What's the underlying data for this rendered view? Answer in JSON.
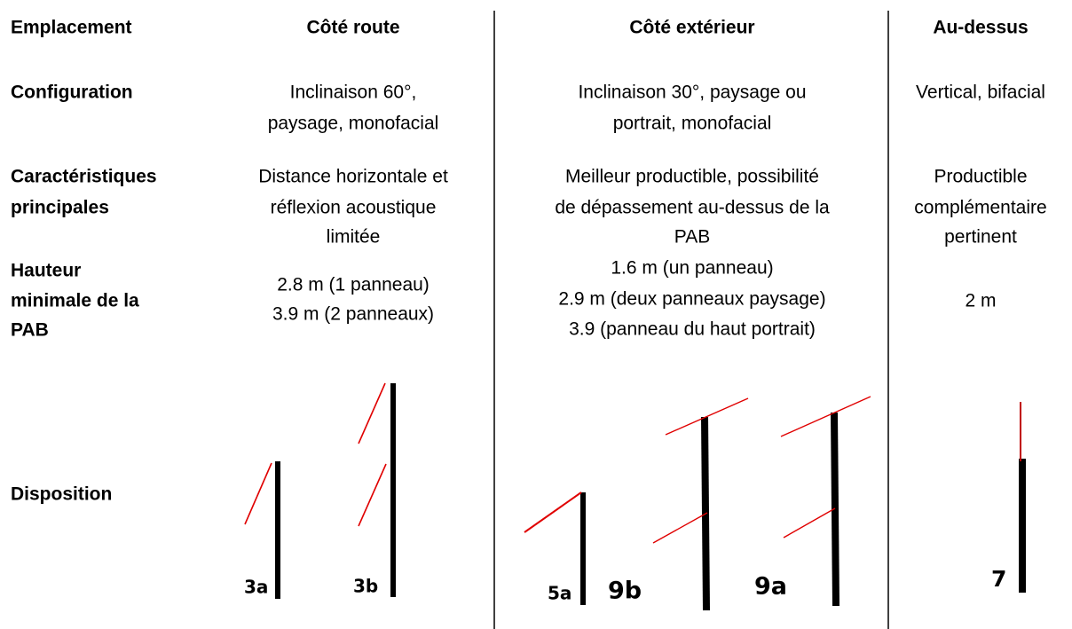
{
  "header": [
    "Emplacement",
    "Côté route",
    "Côté extérieur",
    "Au-dessus"
  ],
  "rows": [
    {
      "label": [
        "Configuration"
      ],
      "cells": [
        [
          "Inclinaison 60°,",
          "paysage, monofacial"
        ],
        [
          "Inclinaison 30°, paysage ou",
          "portrait, monofacial"
        ],
        [
          "Vertical, bifacial"
        ]
      ]
    },
    {
      "label": [
        "Caractéristiques",
        "principales"
      ],
      "cells": [
        [
          "Distance horizontale et",
          "réflexion acoustique",
          "limitée"
        ],
        [
          "Meilleur productible, possibilité",
          "de dépassement au-dessus de la",
          "PAB"
        ],
        [
          "Productible",
          "complémentaire",
          "pertinent"
        ]
      ]
    },
    {
      "label": [
        "Hauteur",
        "minimale de la",
        "PAB"
      ],
      "cells": [
        [
          "2.8 m (1 panneau)",
          "3.9 m (2 panneaux)"
        ],
        [
          "1.6 m (un panneau)",
          "2.9 m (deux panneaux paysage)",
          "3.9 (panneau du haut portrait)"
        ],
        [
          "2 m"
        ]
      ]
    }
  ],
  "disposition": {
    "label": "Disposition",
    "diagrams": [
      "3a",
      "3b",
      "5a",
      "9b",
      "9a",
      "7"
    ]
  }
}
